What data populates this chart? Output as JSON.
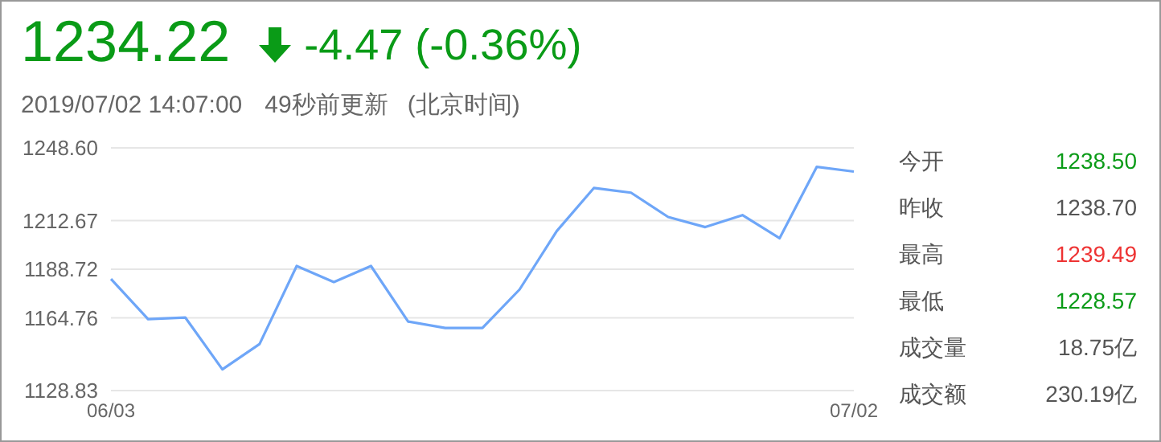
{
  "chart_data": {
    "type": "line",
    "title": "1234.22",
    "subtitle": "-4.47 (-0.36%)",
    "annotations": [
      "2019/07/02 14:07:00",
      "49秒前更新",
      "(北京时间)",
      "今开",
      "1238.50",
      "昨收",
      "1238.70",
      "最高",
      "1239.49",
      "最低",
      "1228.57",
      "成交量",
      "18.75亿",
      "成交额",
      "230.19亿"
    ],
    "categories": [
      "06/03",
      null,
      null,
      null,
      null,
      null,
      null,
      null,
      null,
      null,
      null,
      null,
      null,
      null,
      null,
      null,
      null,
      null,
      null,
      null,
      "07/02"
    ],
    "series": [
      {
        "color": "#6ea6f8",
        "values": [
          1183.9,
          1164.1,
          1164.9,
          1139.3,
          1151.8,
          1190.3,
          1182.4,
          1190.3,
          1162.9,
          1159.7,
          1159.7,
          1178.7,
          1207.5,
          1228.8,
          1226.5,
          1214.5,
          1209.5,
          1215.4,
          1204.0,
          1239.2,
          1236.9
        ]
      }
    ],
    "ylim": [
      1128.83,
      1248.6
    ],
    "yticks": [
      1128.83,
      1164.76,
      1188.72,
      1212.67,
      {
        "value": 1248.6,
        "label": "1248.60"
      }
    ],
    "grid": "y",
    "marker": "none",
    "line_style": "solid"
  }
}
